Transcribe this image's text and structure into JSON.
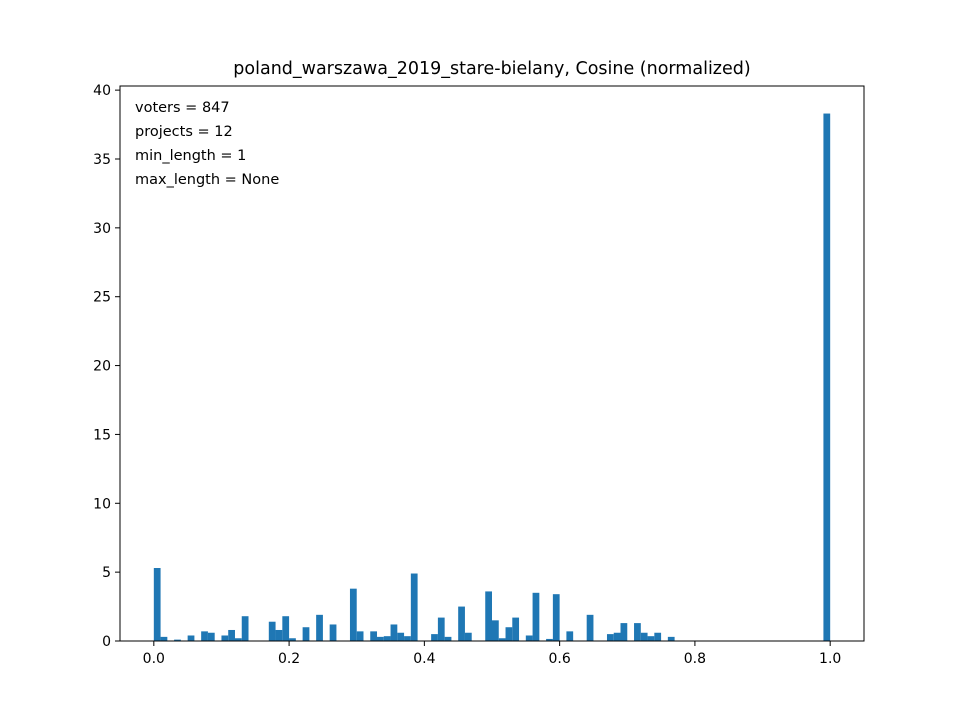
{
  "chart_data": {
    "type": "bar",
    "title": "poland_warszawa_2019_stare-bielany, Cosine (normalized)",
    "xlabel": "",
    "ylabel": "",
    "xlim": [
      -0.05,
      1.05
    ],
    "ylim": [
      0,
      40.3
    ],
    "bin_width": 0.01,
    "xticks": [
      0.0,
      0.2,
      0.4,
      0.6,
      0.8,
      1.0
    ],
    "xtick_labels": [
      "0.0",
      "0.2",
      "0.4",
      "0.6",
      "0.8",
      "1.0"
    ],
    "yticks": [
      0,
      5,
      10,
      15,
      20,
      25,
      30,
      35,
      40
    ],
    "ytick_labels": [
      "0",
      "5",
      "10",
      "15",
      "20",
      "25",
      "30",
      "35",
      "40"
    ],
    "grid": false,
    "bar_color": "#1f77b4",
    "annotations": [
      "voters = 847",
      "projects = 12",
      "min_length = 1",
      "max_length = None"
    ],
    "x": [
      0.0,
      0.01,
      0.03,
      0.05,
      0.07,
      0.08,
      0.1,
      0.11,
      0.12,
      0.13,
      0.17,
      0.18,
      0.19,
      0.2,
      0.22,
      0.24,
      0.26,
      0.29,
      0.3,
      0.32,
      0.33,
      0.34,
      0.35,
      0.36,
      0.37,
      0.38,
      0.41,
      0.42,
      0.43,
      0.45,
      0.46,
      0.49,
      0.5,
      0.51,
      0.52,
      0.53,
      0.55,
      0.56,
      0.58,
      0.59,
      0.61,
      0.64,
      0.67,
      0.68,
      0.69,
      0.71,
      0.72,
      0.73,
      0.74,
      0.76,
      0.99
    ],
    "values": [
      5.3,
      0.3,
      0.1,
      0.4,
      0.7,
      0.6,
      0.4,
      0.8,
      0.2,
      1.8,
      1.4,
      0.8,
      1.8,
      0.2,
      1.0,
      1.9,
      1.2,
      3.8,
      0.7,
      0.7,
      0.3,
      0.35,
      1.2,
      0.6,
      0.35,
      4.9,
      0.5,
      1.7,
      0.3,
      2.5,
      0.6,
      3.6,
      1.5,
      0.2,
      1.0,
      1.7,
      0.4,
      3.5,
      0.15,
      3.4,
      0.7,
      1.9,
      0.5,
      0.6,
      1.3,
      1.3,
      0.6,
      0.35,
      0.6,
      0.3,
      38.3
    ]
  }
}
